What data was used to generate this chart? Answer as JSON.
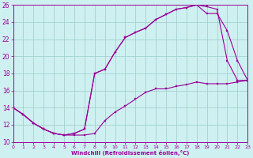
{
  "xlabel": "Windchill (Refroidissement éolien,°C)",
  "bg_color": "#cff0f0",
  "line_color": "#990099",
  "grid_color": "#99cccc",
  "xlim": [
    0,
    23
  ],
  "ylim": [
    10,
    26
  ],
  "xticks": [
    0,
    1,
    2,
    3,
    4,
    5,
    6,
    7,
    8,
    9,
    10,
    11,
    12,
    13,
    14,
    15,
    16,
    17,
    18,
    19,
    20,
    21,
    22,
    23
  ],
  "yticks": [
    10,
    12,
    14,
    16,
    18,
    20,
    22,
    24,
    26
  ],
  "top_x": [
    0,
    1,
    2,
    3,
    4,
    5,
    6,
    7,
    8,
    9,
    10,
    11,
    12,
    13,
    14,
    15,
    16,
    17,
    18,
    19,
    20,
    21,
    22,
    23
  ],
  "top_y": [
    14,
    13.2,
    12.2,
    11.5,
    11.0,
    10.8,
    11.0,
    11.5,
    18.0,
    18.5,
    20.5,
    22.2,
    22.8,
    23.3,
    24.3,
    24.9,
    25.5,
    25.7,
    26.0,
    25.8,
    25.5,
    19.5,
    17.2,
    17.2
  ],
  "mid_x": [
    0,
    1,
    2,
    3,
    4,
    5,
    6,
    7,
    8,
    9,
    10,
    11,
    12,
    13,
    14,
    15,
    16,
    17,
    18,
    19,
    20,
    21,
    22,
    23
  ],
  "mid_y": [
    14,
    13.2,
    12.2,
    11.5,
    11.0,
    10.8,
    11.0,
    11.5,
    18.0,
    18.5,
    20.5,
    22.2,
    22.8,
    23.3,
    24.3,
    24.9,
    25.5,
    25.7,
    26.0,
    25.0,
    25.0,
    23.0,
    19.5,
    17.2
  ],
  "bot_x": [
    0,
    1,
    2,
    3,
    4,
    5,
    6,
    7,
    8,
    9,
    10,
    11,
    12,
    13,
    14,
    15,
    16,
    17,
    18,
    19,
    20,
    21,
    22,
    23
  ],
  "bot_y": [
    14,
    13.2,
    12.2,
    11.5,
    11.0,
    10.8,
    10.8,
    10.8,
    11.0,
    12.5,
    13.5,
    14.2,
    15.0,
    15.8,
    16.2,
    16.2,
    16.5,
    16.7,
    17.0,
    16.8,
    16.8,
    16.8,
    17.0,
    17.2
  ]
}
